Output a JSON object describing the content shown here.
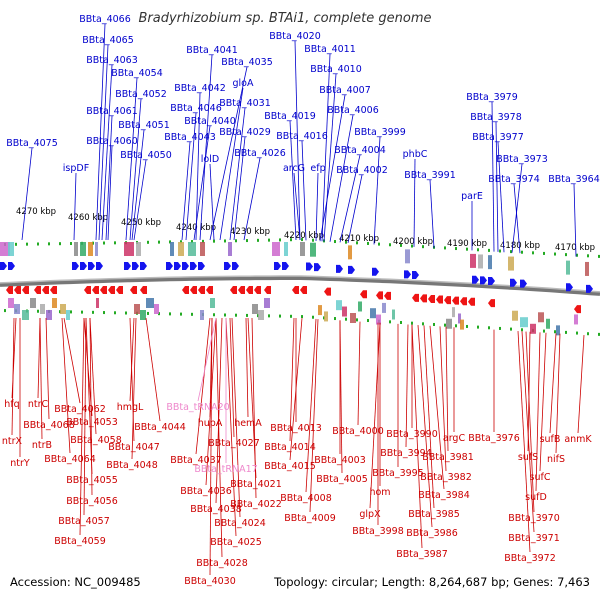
{
  "title": "Bradyrhizobium sp. BTAi1, complete genome",
  "footer": {
    "accession": "Accession: NC_009485",
    "topology": "Topology: circular; Length: 8,264,687 bp; Genes: 7,463"
  },
  "colors": {
    "plus_label": "#0000cc",
    "minus_label": "#cc0000",
    "rna_label": "#ee88cc",
    "plus_arrow": "#1515ee",
    "minus_arrow": "#ee1515",
    "tick": "#22aa22",
    "backbone": "#777777"
  },
  "scale_labels": [
    "4270 kbp",
    "4260 kbp",
    "4250 kbp",
    "4240 kbp",
    "4230 kbp",
    "4220 kbp",
    "4210 kbp",
    "4200 kbp",
    "4190 kbp",
    "4180 kbp",
    "4170 kbp"
  ],
  "plus_genes": [
    "BBta_4066",
    "BBta_4065",
    "BBta_4063",
    "BBta_4054",
    "BBta_4052",
    "BBta_4061",
    "BBta_4051",
    "BBta_4060",
    "BBta_4050",
    "BBta_4075",
    "ispDF",
    "BBta_4041",
    "BBta_4035",
    "BBta_4042",
    "gloA",
    "BBta_4046",
    "BBta_4031",
    "BBta_4040",
    "BBta_4029",
    "BBta_4043",
    "BBta_4026",
    "lolD",
    "BBta_4020",
    "BBta_4011",
    "BBta_4010",
    "BBta_4007",
    "BBta_4006",
    "BBta_4019",
    "BBta_4016",
    "BBta_3999",
    "BBta_4004",
    "arcG",
    "efp",
    "BBta_4002",
    "phbC",
    "BBta_3991",
    "BBta_3979",
    "BBta_3978",
    "BBta_3977",
    "BBta_3973",
    "BBta_3974",
    "BBta_3964",
    "parE"
  ],
  "minus_genes": [
    "hfq",
    "ntrC",
    "BBta_4062",
    "BBta_4068",
    "BBta_4053",
    "ntrX",
    "ntrB",
    "BBta_4058",
    "ntrY",
    "BBta_4064",
    "BBta_4055",
    "BBta_4056",
    "BBta_4057",
    "BBta_4059",
    "hmgL",
    "BBta_4047",
    "BBta_4044",
    "BBta_4048",
    "hupA",
    "hemA",
    "BBta_4027",
    "BBta_4037",
    "BBta_4036",
    "BBta_4021",
    "BBta_4038",
    "BBta_4022",
    "BBta_4024",
    "BBta_4025",
    "BBta_4028",
    "BBta_4030",
    "BBta_4013",
    "BBta_4014",
    "BBta_4015",
    "BBta_4008",
    "BBta_4009",
    "BBta_4000",
    "BBta_4003",
    "BBta_4005",
    "BBta_3990",
    "BBta_3994",
    "BBta_3995",
    "hom",
    "glpX",
    "BBta_3998",
    "argC",
    "BBta_3981",
    "BBta_3982",
    "BBta_3984",
    "BBta_3985",
    "BBta_3986",
    "BBta_3987",
    "BBta_3976",
    "sufB",
    "anmK",
    "sufS",
    "nifS",
    "sufC",
    "sufD",
    "BBta_3970",
    "BBta_3971",
    "BBta_3972"
  ],
  "rna_genes": [
    "BBta_tRNA20",
    "BBta_tRNA17"
  ]
}
